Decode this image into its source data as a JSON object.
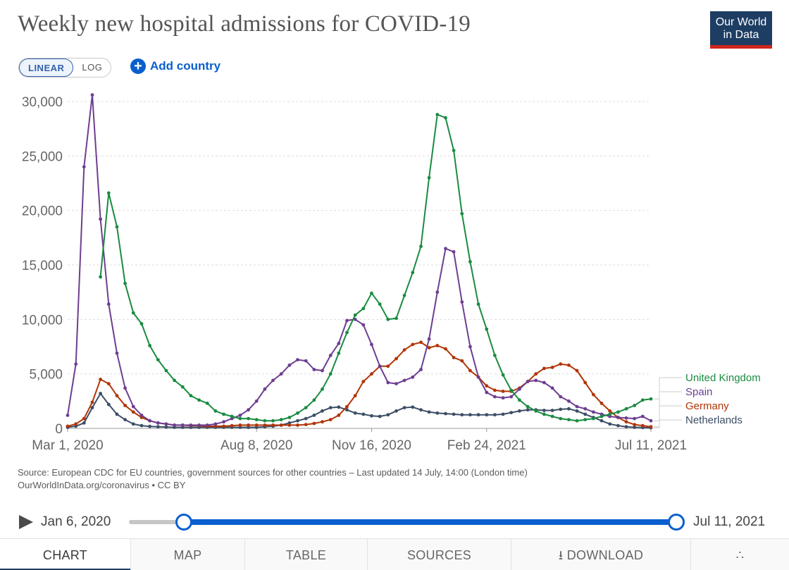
{
  "header": {
    "title": "Weekly new hospital admissions for COVID-19",
    "logo_line1": "Our World",
    "logo_line2": "in Data"
  },
  "controls": {
    "linear_label": "LINEAR",
    "log_label": "LOG",
    "add_country_label": "Add country"
  },
  "footer": {
    "source_line1": "Source: European CDC for EU countries, government sources for other countries – Last updated 14 July, 14:00 (London time)",
    "source_line2": "OurWorldInData.org/coronavirus • CC BY"
  },
  "timeline": {
    "start_label": "Jan 6, 2020",
    "end_label": "Jul 11, 2021",
    "selection_start_fraction": 0.1,
    "selection_end_fraction": 1.0
  },
  "tabs": [
    {
      "label": "CHART",
      "active": true
    },
    {
      "label": "MAP",
      "active": false
    },
    {
      "label": "TABLE",
      "active": false
    },
    {
      "label": "SOURCES",
      "active": false
    },
    {
      "label": "DOWNLOAD",
      "active": false
    },
    {
      "label": "",
      "active": false
    }
  ],
  "chart_data": {
    "type": "line",
    "title": "Weekly new hospital admissions for COVID-19",
    "x_unit": "weeks since Mar 1, 2020",
    "xlim": [
      0,
      71
    ],
    "ylim": [
      0,
      30000
    ],
    "y_ticks": [
      0,
      5000,
      10000,
      15000,
      20000,
      25000,
      30000
    ],
    "y_tick_labels": [
      "0",
      "5,000",
      "10,000",
      "15,000",
      "20,000",
      "25,000",
      "30,000"
    ],
    "x_ticks": [
      0,
      23,
      37,
      51,
      71
    ],
    "x_tick_labels": [
      "Mar 1, 2020",
      "Aug 8, 2020",
      "Nov 16, 2020",
      "Feb 24, 2021",
      "Jul 11, 2021"
    ],
    "series": [
      {
        "name": "Netherlands",
        "color": "#3c4e66",
        "x": [
          0,
          1,
          2,
          3,
          4,
          5,
          6,
          7,
          8,
          9,
          10,
          11,
          12,
          13,
          14,
          15,
          16,
          17,
          18,
          19,
          20,
          21,
          22,
          23,
          24,
          25,
          26,
          27,
          28,
          29,
          30,
          31,
          32,
          33,
          34,
          35,
          36,
          37,
          38,
          39,
          40,
          41,
          42,
          43,
          44,
          45,
          46,
          47,
          48,
          49,
          50,
          51,
          52,
          53,
          54,
          55,
          56,
          57,
          58,
          59,
          60,
          61,
          62,
          63,
          64,
          65,
          66,
          67,
          68,
          69,
          70,
          71
        ],
        "values": [
          100,
          200,
          500,
          1900,
          3200,
          2200,
          1300,
          800,
          400,
          250,
          180,
          150,
          120,
          100,
          100,
          100,
          100,
          100,
          100,
          100,
          100,
          100,
          100,
          100,
          150,
          200,
          300,
          500,
          700,
          900,
          1200,
          1600,
          1900,
          1950,
          1700,
          1400,
          1300,
          1150,
          1100,
          1250,
          1600,
          1900,
          1950,
          1700,
          1500,
          1400,
          1350,
          1300,
          1250,
          1250,
          1250,
          1250,
          1250,
          1300,
          1450,
          1600,
          1700,
          1700,
          1650,
          1650,
          1750,
          1800,
          1600,
          1300,
          1000,
          700,
          400,
          250,
          150,
          100,
          80,
          60
        ]
      },
      {
        "name": "Germany",
        "color": "#b13507",
        "x": [
          0,
          1,
          2,
          3,
          4,
          5,
          6,
          7,
          8,
          9,
          10,
          11,
          12,
          13,
          14,
          15,
          16,
          17,
          18,
          19,
          20,
          21,
          22,
          23,
          24,
          25,
          26,
          27,
          28,
          29,
          30,
          31,
          32,
          33,
          34,
          35,
          36,
          37,
          38,
          39,
          40,
          41,
          42,
          43,
          44,
          45,
          46,
          47,
          48,
          49,
          50,
          51,
          52,
          53,
          54,
          55,
          56,
          57,
          58,
          59,
          60,
          61,
          62,
          63,
          64,
          65,
          66,
          67,
          68,
          69,
          70,
          71
        ],
        "values": [
          200,
          400,
          900,
          2400,
          4500,
          4100,
          3000,
          2100,
          1500,
          1000,
          700,
          500,
          400,
          300,
          300,
          250,
          250,
          200,
          200,
          200,
          250,
          300,
          300,
          300,
          300,
          300,
          300,
          300,
          300,
          350,
          450,
          600,
          800,
          1200,
          2000,
          3000,
          4300,
          5000,
          5700,
          5700,
          6400,
          7200,
          7700,
          7900,
          7400,
          7600,
          7300,
          6500,
          6200,
          5300,
          4700,
          3900,
          3500,
          3400,
          3400,
          3700,
          4300,
          5000,
          5500,
          5600,
          5900,
          5800,
          5300,
          4200,
          3100,
          2300,
          1600,
          1000,
          600,
          350,
          250,
          150
        ]
      },
      {
        "name": "Spain",
        "color": "#6d3e91",
        "x": [
          0,
          1,
          2,
          3,
          4,
          5,
          6,
          7,
          8,
          9,
          10,
          11,
          12,
          13,
          14,
          15,
          16,
          17,
          18,
          19,
          20,
          21,
          22,
          23,
          24,
          25,
          26,
          27,
          28,
          29,
          30,
          31,
          32,
          33,
          34,
          35,
          36,
          37,
          38,
          39,
          40,
          41,
          42,
          43,
          44,
          45,
          46,
          47,
          48,
          49,
          50,
          51,
          52,
          53,
          54,
          55,
          56,
          57,
          58,
          59,
          60,
          61,
          62,
          63,
          64,
          65,
          66,
          67,
          68,
          69,
          70,
          71
        ],
        "values": [
          1200,
          5900,
          24000,
          30600,
          19200,
          11400,
          6900,
          3700,
          2000,
          1200,
          700,
          500,
          400,
          300,
          300,
          300,
          300,
          300,
          400,
          600,
          900,
          1200,
          1700,
          2500,
          3600,
          4400,
          5000,
          5800,
          6300,
          6200,
          5400,
          5300,
          6700,
          7800,
          9900,
          10000,
          9500,
          7700,
          5700,
          4200,
          4100,
          4400,
          4700,
          5400,
          8200,
          12500,
          16500,
          16200,
          11600,
          7500,
          4700,
          3300,
          2900,
          2800,
          2900,
          3600,
          4300,
          4400,
          4200,
          3700,
          2900,
          2500,
          2000,
          1800,
          1500,
          1300,
          1100,
          1000,
          950,
          900,
          1100,
          700
        ]
      },
      {
        "name": "United Kingdom",
        "color": "#1a8b41",
        "x": [
          4,
          5,
          6,
          7,
          8,
          9,
          10,
          11,
          12,
          13,
          14,
          15,
          16,
          17,
          18,
          19,
          20,
          21,
          22,
          23,
          24,
          25,
          26,
          27,
          28,
          29,
          30,
          31,
          32,
          33,
          34,
          35,
          36,
          37,
          38,
          39,
          40,
          41,
          42,
          43,
          44,
          45,
          46,
          47,
          48,
          49,
          50,
          51,
          52,
          53,
          54,
          55,
          56,
          57,
          58,
          59,
          60,
          61,
          62,
          63,
          64,
          65,
          66,
          67,
          68,
          69,
          70,
          71
        ],
        "values": [
          13900,
          21600,
          18500,
          13300,
          10600,
          9600,
          7600,
          6300,
          5300,
          4400,
          3800,
          3000,
          2600,
          2300,
          1600,
          1300,
          1100,
          900,
          900,
          800,
          700,
          700,
          800,
          1000,
          1400,
          1900,
          2600,
          3600,
          5000,
          6900,
          8800,
          10400,
          11000,
          12400,
          11400,
          10000,
          10100,
          12200,
          14300,
          16700,
          23000,
          28800,
          28500,
          25500,
          19700,
          15300,
          11400,
          9100,
          6700,
          4900,
          3500,
          2600,
          2000,
          1600,
          1300,
          1100,
          900,
          800,
          700,
          800,
          900,
          1100,
          1300,
          1500,
          1800,
          2100,
          2600,
          2700
        ]
      }
    ],
    "legend": [
      "United Kingdom",
      "Spain",
      "Germany",
      "Netherlands"
    ],
    "legend_position": "right"
  }
}
